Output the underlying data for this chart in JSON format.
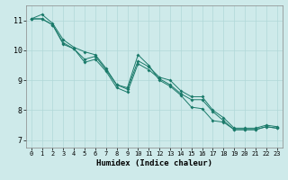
{
  "title": "",
  "xlabel": "Humidex (Indice chaleur)",
  "ylabel": "",
  "background_color": "#ceeaea",
  "line_color": "#1a7a6a",
  "grid_color": "#b0d8d8",
  "xlim": [
    -0.5,
    23.5
  ],
  "ylim": [
    6.75,
    11.5
  ],
  "yticks": [
    7,
    8,
    9,
    10,
    11
  ],
  "xticks": [
    0,
    1,
    2,
    3,
    4,
    5,
    6,
    7,
    8,
    9,
    10,
    11,
    12,
    13,
    14,
    15,
    16,
    17,
    18,
    19,
    20,
    21,
    22,
    23
  ],
  "series": [
    [
      11.05,
      11.2,
      10.9,
      10.35,
      10.1,
      9.95,
      9.85,
      9.4,
      8.85,
      8.75,
      9.85,
      9.5,
      9.0,
      8.8,
      8.5,
      8.1,
      8.05,
      7.65,
      7.6,
      7.35,
      7.35,
      7.35,
      7.45,
      7.4
    ],
    [
      11.05,
      11.05,
      10.85,
      10.2,
      10.05,
      9.7,
      9.8,
      9.35,
      8.85,
      8.7,
      9.65,
      9.45,
      9.1,
      9.0,
      8.65,
      8.45,
      8.45,
      8.0,
      7.75,
      7.4,
      7.4,
      7.4,
      7.5,
      7.45
    ],
    [
      11.05,
      11.05,
      10.85,
      10.25,
      10.05,
      9.6,
      9.7,
      9.3,
      8.75,
      8.6,
      9.55,
      9.35,
      9.05,
      8.85,
      8.55,
      8.35,
      8.35,
      7.95,
      7.65,
      7.35,
      7.35,
      7.35,
      7.45,
      7.4
    ]
  ]
}
